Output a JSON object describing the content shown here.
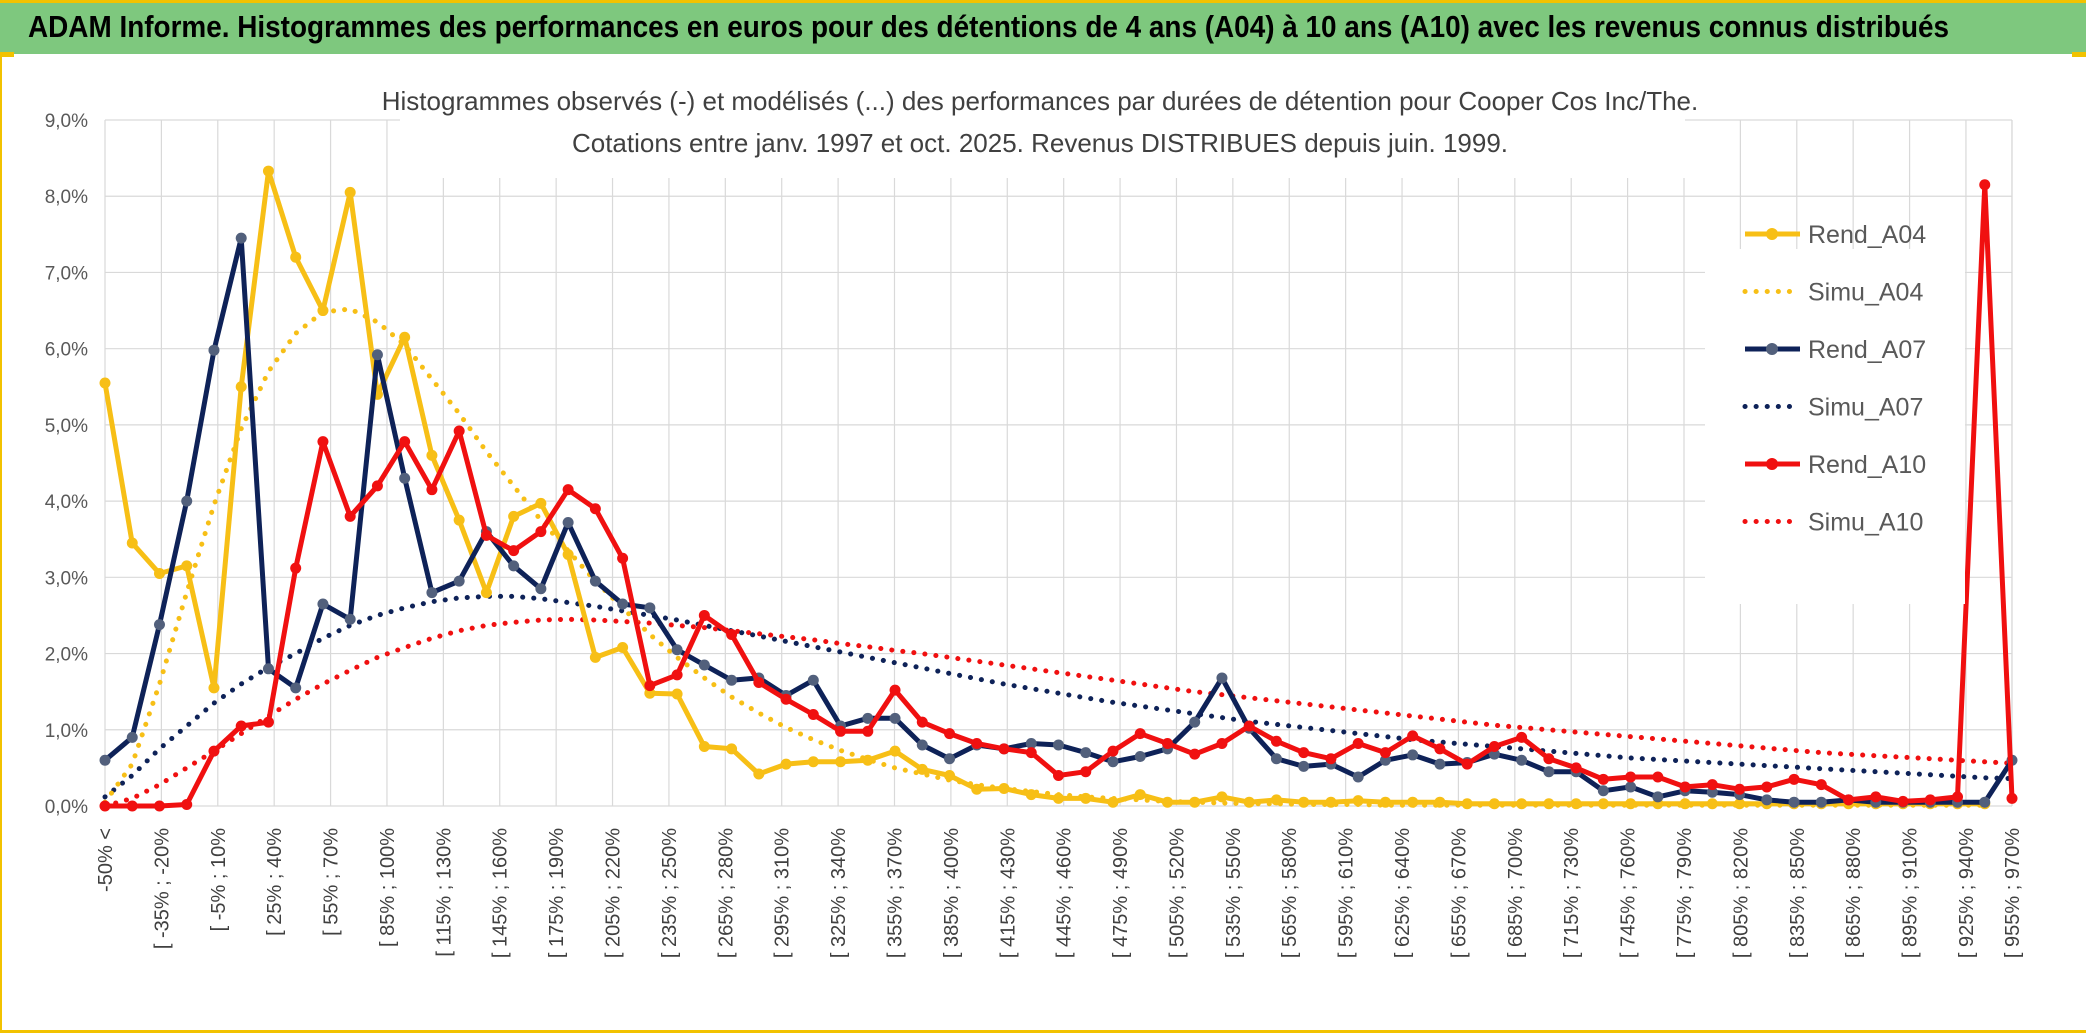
{
  "banner": {
    "title": "ADAM Informe. Histogrammes des performances en euros pour des détentions de 4 ans (A04) à 10 ans (A10) avec les revenus connus distribués"
  },
  "colors": {
    "banner": "#7ec87e",
    "frame_accent": "#f2c200",
    "A04": "#f7bf16",
    "A07": "#0e2258",
    "A10": "#f01010",
    "grid": "#d9d9d9"
  },
  "chart_data": {
    "type": "line",
    "title": "Histogrammes observés (-) et modélisés (...) des performances par durées de détention pour Cooper Cos Inc/The.",
    "subtitle": "Cotations entre janv. 1997 et oct. 2025. Revenus DISTRIBUES depuis juin. 1999.",
    "xlabel": "",
    "ylabel": "",
    "ylim": [
      0,
      9
    ],
    "y_ticks": [
      "0,0%",
      "1,0%",
      "2,0%",
      "3,0%",
      "4,0%",
      "5,0%",
      "6,0%",
      "7,0%",
      "8,0%",
      "9,0%"
    ],
    "grid": true,
    "legend_position": "right",
    "x_tick_labels": [
      "-50% <",
      "[ -35% ; -20%",
      "[ -5% ; 10%",
      "[ 25% ; 40%",
      "[ 55% ; 70%",
      "[ 85% ; 100%",
      "[ 115% ; 130%",
      "[ 145% ; 160%",
      "[ 175% ; 190%",
      "[ 205% ; 220%",
      "[ 235% ; 250%",
      "[ 265% ; 280%",
      "[ 295% ; 310%",
      "[ 325% ; 340%",
      "[ 355% ; 370%",
      "[ 385% ; 400%",
      "[ 415% ; 430%",
      "[ 445% ; 460%",
      "[ 475% ; 490%",
      "[ 505% ; 520%",
      "[ 535% ; 550%",
      "[ 565% ; 580%",
      "[ 595% ; 610%",
      "[ 625% ; 640%",
      "[ 655% ; 670%",
      "[ 685% ; 700%",
      "[ 715% ; 730%",
      "[ 745% ; 760%",
      "[ 775% ; 790%",
      "[ 805% ; 820%",
      "[ 835% ; 850%",
      "[ 865% ; 880%",
      "[ 895% ; 910%",
      "[ 925% ; 940%",
      "[ 955% ; 970%"
    ],
    "series": [
      {
        "name": "Rend_A04",
        "color": "#f7bf16",
        "style": "solid",
        "values": [
          5.55,
          3.45,
          3.05,
          3.15,
          1.55,
          5.5,
          8.33,
          7.2,
          6.5,
          8.05,
          5.4,
          6.15,
          4.6,
          3.75,
          2.8,
          3.8,
          3.97,
          3.3,
          1.95,
          2.08,
          1.48,
          1.47,
          0.78,
          0.75,
          0.42,
          0.55,
          0.58,
          0.58,
          0.6,
          0.72,
          0.48,
          0.4,
          0.22,
          0.23,
          0.15,
          0.1,
          0.1,
          0.05,
          0.15,
          0.05,
          0.05,
          0.12,
          0.05,
          0.08,
          0.05,
          0.05,
          0.07,
          0.05,
          0.05,
          0.05,
          0.03,
          0.03,
          0.03,
          0.03,
          0.03,
          0.03,
          0.03,
          0.03,
          0.03,
          0.03,
          0.03,
          0.03,
          0.03,
          0.03,
          0.03,
          0.03,
          0.03,
          0.03,
          0.03,
          0.03
        ]
      },
      {
        "name": "Simu_A04",
        "color": "#f7bf16",
        "style": "dotted",
        "values": [
          0.05,
          0.55,
          1.6,
          2.8,
          3.95,
          4.95,
          5.7,
          6.2,
          6.48,
          6.52,
          6.35,
          6.05,
          5.6,
          5.15,
          4.65,
          4.2,
          3.75,
          3.35,
          2.95,
          2.6,
          2.25,
          1.95,
          1.68,
          1.43,
          1.22,
          1.03,
          0.87,
          0.73,
          0.61,
          0.5,
          0.42,
          0.34,
          0.28,
          0.23,
          0.19,
          0.15,
          0.12,
          0.1,
          0.08,
          0.06,
          0.05,
          0.04,
          0.03,
          0.03,
          0.02,
          0.02,
          0.02,
          0.01,
          0.01,
          0.01,
          0.01,
          0.01,
          0.01,
          0.01,
          0.01,
          0.01,
          0.01,
          0.01,
          0.01,
          0.01,
          0.01,
          0.01,
          0.01,
          0.01,
          0.01,
          0.01,
          0.01,
          0.01,
          0.01,
          0.01
        ]
      },
      {
        "name": "Rend_A07",
        "color": "#0e2258",
        "style": "solid",
        "values": [
          0.6,
          0.9,
          2.38,
          4.0,
          5.98,
          7.45,
          1.8,
          1.55,
          2.65,
          2.45,
          5.92,
          4.3,
          2.8,
          2.95,
          3.6,
          3.15,
          2.85,
          3.72,
          2.95,
          2.65,
          2.6,
          2.05,
          1.85,
          1.65,
          1.68,
          1.45,
          1.65,
          1.05,
          1.15,
          1.15,
          0.8,
          0.62,
          0.8,
          0.75,
          0.82,
          0.8,
          0.7,
          0.58,
          0.65,
          0.75,
          1.1,
          1.68,
          1.02,
          0.62,
          0.52,
          0.55,
          0.38,
          0.6,
          0.67,
          0.55,
          0.57,
          0.68,
          0.6,
          0.45,
          0.45,
          0.2,
          0.25,
          0.12,
          0.2,
          0.18,
          0.15,
          0.08,
          0.05,
          0.05,
          0.08,
          0.05,
          0.05,
          0.05,
          0.05,
          0.05,
          0.6
        ]
      },
      {
        "name": "Simu_A07",
        "color": "#0e2258",
        "style": "dotted",
        "values": [
          0.12,
          0.4,
          0.75,
          1.05,
          1.35,
          1.6,
          1.82,
          2.0,
          2.2,
          2.37,
          2.5,
          2.6,
          2.68,
          2.73,
          2.75,
          2.75,
          2.72,
          2.67,
          2.62,
          2.56,
          2.5,
          2.44,
          2.37,
          2.3,
          2.23,
          2.16,
          2.09,
          2.02,
          1.95,
          1.88,
          1.81,
          1.74,
          1.67,
          1.6,
          1.54,
          1.48,
          1.42,
          1.36,
          1.31,
          1.26,
          1.21,
          1.16,
          1.11,
          1.07,
          1.03,
          0.99,
          0.95,
          0.91,
          0.87,
          0.84,
          0.81,
          0.78,
          0.75,
          0.72,
          0.69,
          0.66,
          0.63,
          0.61,
          0.59,
          0.57,
          0.55,
          0.53,
          0.51,
          0.49,
          0.47,
          0.45,
          0.43,
          0.41,
          0.39,
          0.37,
          0.36
        ]
      },
      {
        "name": "Rend_A10",
        "color": "#f01010",
        "style": "solid",
        "values": [
          0.0,
          0.0,
          0.0,
          0.02,
          0.72,
          1.05,
          1.1,
          3.12,
          4.78,
          3.8,
          4.2,
          4.78,
          4.15,
          4.92,
          3.55,
          3.35,
          3.6,
          4.15,
          3.9,
          3.25,
          1.58,
          1.72,
          2.5,
          2.25,
          1.62,
          1.4,
          1.2,
          0.98,
          0.98,
          1.52,
          1.1,
          0.95,
          0.82,
          0.75,
          0.7,
          0.4,
          0.45,
          0.72,
          0.95,
          0.82,
          0.68,
          0.82,
          1.05,
          0.85,
          0.7,
          0.62,
          0.82,
          0.7,
          0.92,
          0.75,
          0.55,
          0.78,
          0.9,
          0.62,
          0.5,
          0.35,
          0.38,
          0.38,
          0.25,
          0.28,
          0.22,
          0.25,
          0.35,
          0.28,
          0.08,
          0.12,
          0.06,
          0.08,
          0.12,
          8.15,
          0.1
        ]
      },
      {
        "name": "Simu_A10",
        "color": "#f01010",
        "style": "dotted",
        "values": [
          0.0,
          0.1,
          0.28,
          0.5,
          0.72,
          0.95,
          1.18,
          1.4,
          1.6,
          1.78,
          1.95,
          2.08,
          2.2,
          2.3,
          2.37,
          2.41,
          2.44,
          2.45,
          2.44,
          2.42,
          2.4,
          2.37,
          2.34,
          2.3,
          2.26,
          2.22,
          2.18,
          2.13,
          2.09,
          2.04,
          2.0,
          1.95,
          1.9,
          1.85,
          1.8,
          1.75,
          1.7,
          1.65,
          1.6,
          1.55,
          1.5,
          1.46,
          1.42,
          1.38,
          1.34,
          1.3,
          1.26,
          1.22,
          1.18,
          1.14,
          1.1,
          1.06,
          1.03,
          1.0,
          0.97,
          0.94,
          0.91,
          0.88,
          0.85,
          0.82,
          0.79,
          0.76,
          0.73,
          0.7,
          0.68,
          0.66,
          0.64,
          0.62,
          0.6,
          0.58,
          0.56
        ]
      }
    ]
  }
}
